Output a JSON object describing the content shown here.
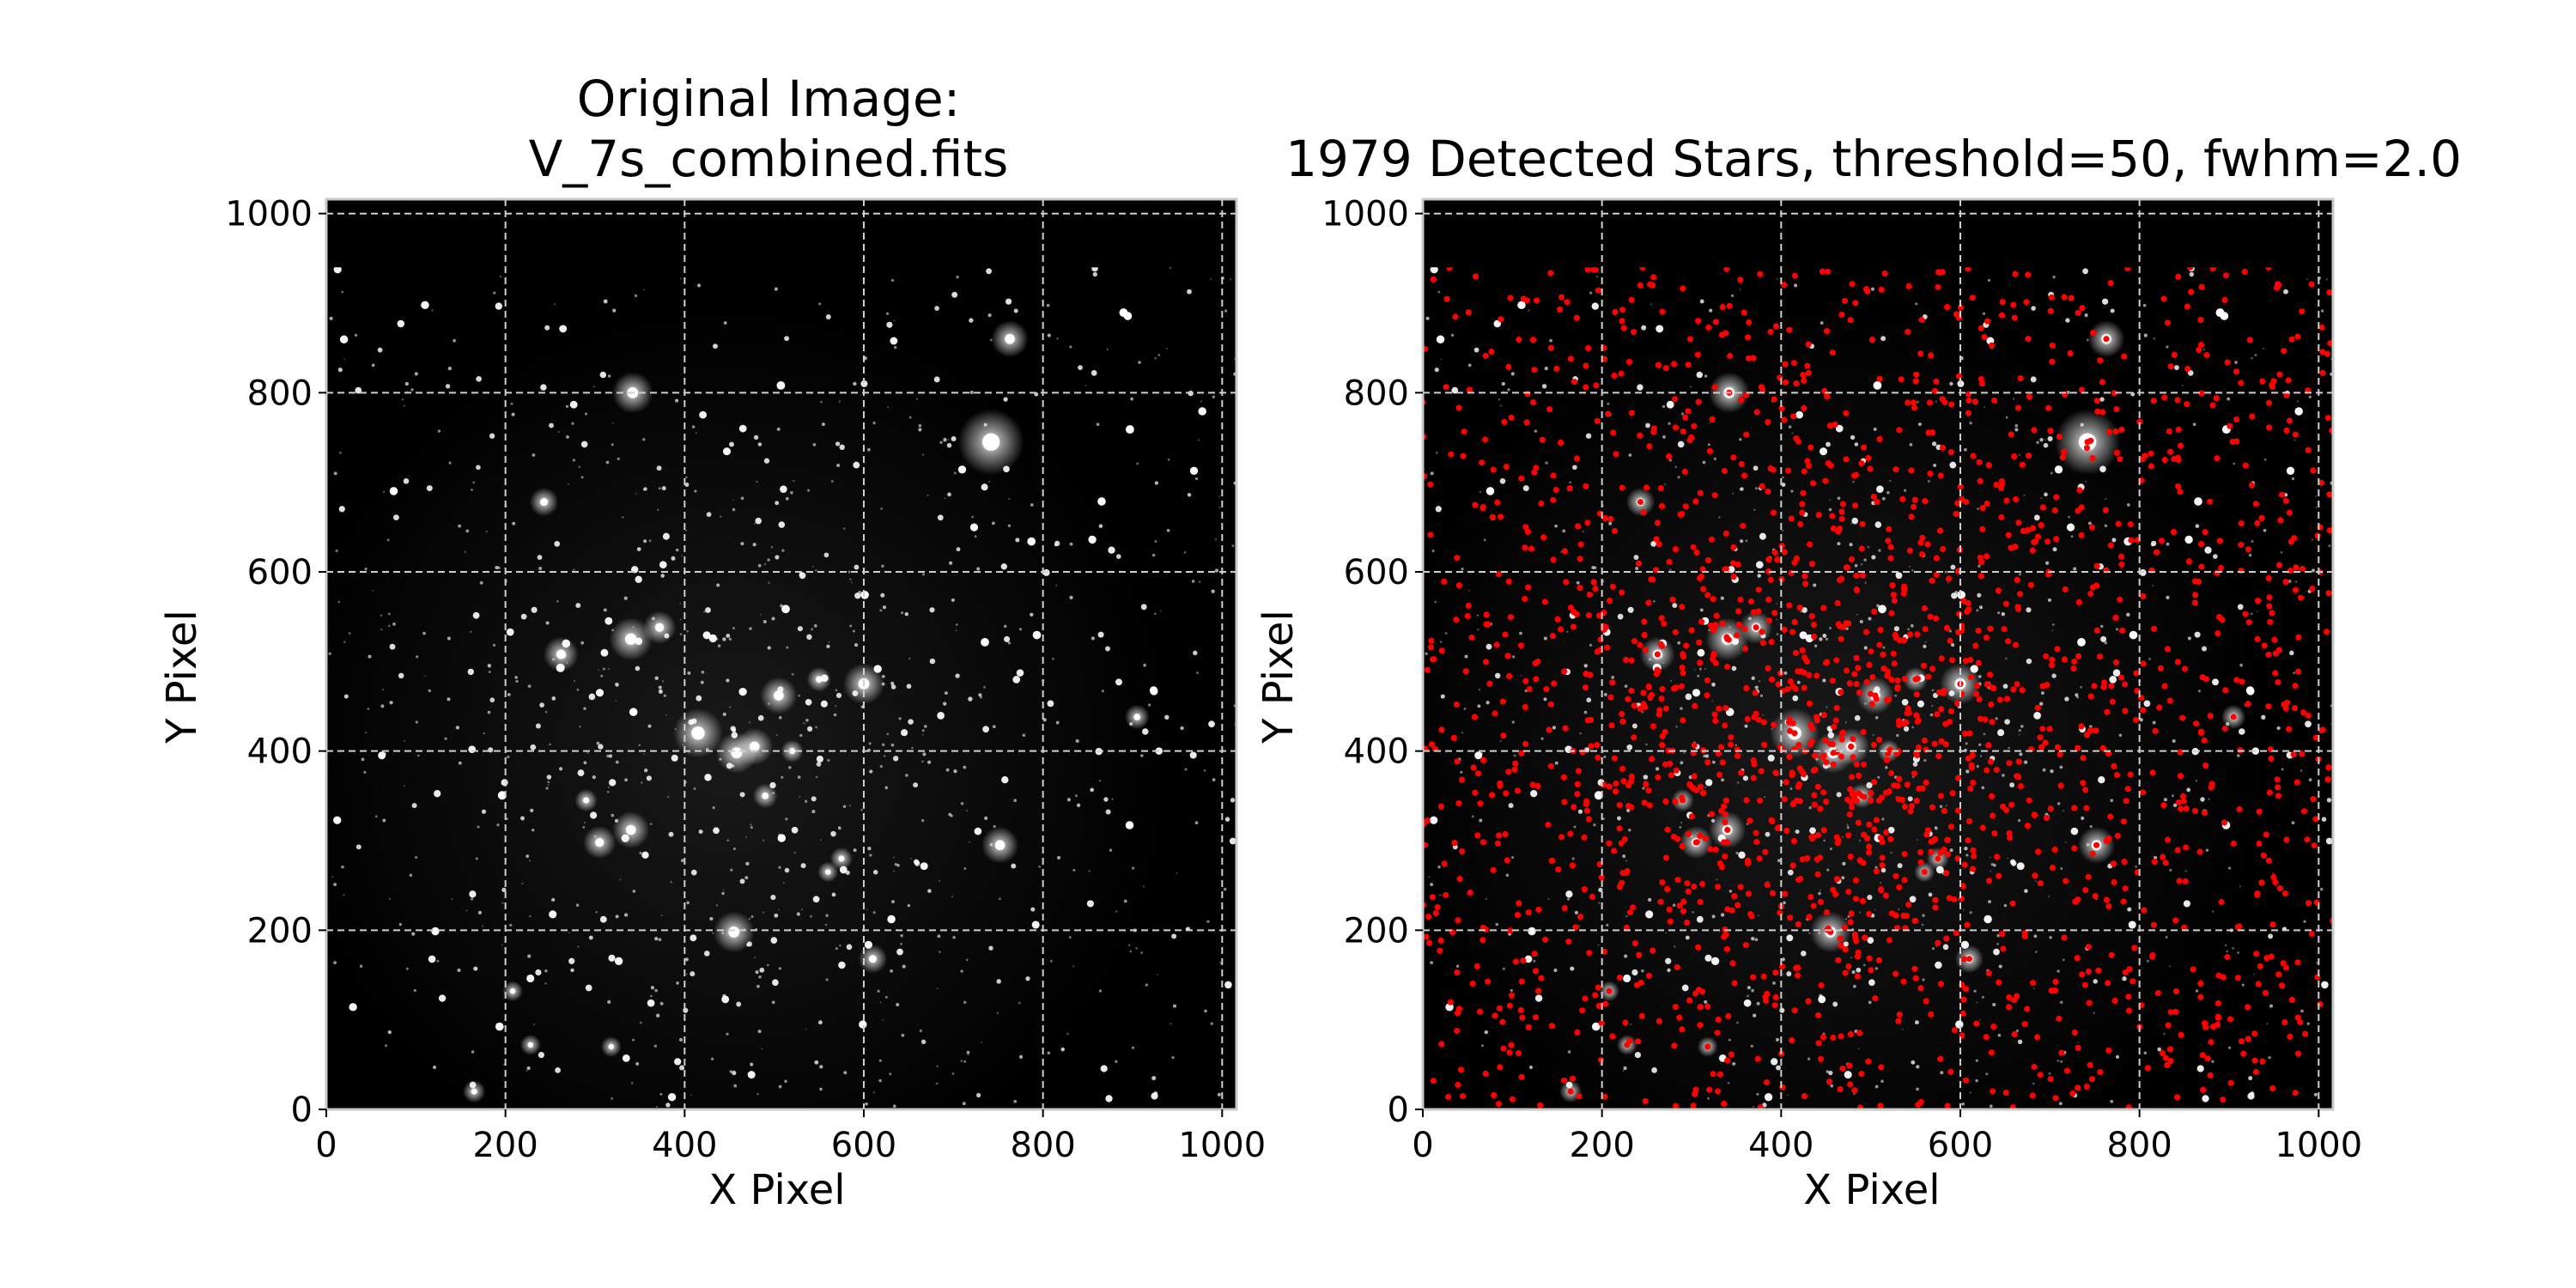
{
  "chart_data": [
    {
      "type": "scatter",
      "title_line1": "Original Image:",
      "title_line2": "V_7s_combined.fits",
      "xlabel": "X Pixel",
      "ylabel": "Y Pixel",
      "xlim": [
        0,
        1016
      ],
      "ylim": [
        0,
        1016
      ],
      "xticks": [
        "0",
        "200",
        "400",
        "600",
        "800",
        "1000"
      ],
      "yticks": [
        "0",
        "200",
        "400",
        "600",
        "800",
        "1000"
      ],
      "xtick_values": [
        0,
        200,
        400,
        600,
        800,
        1000
      ],
      "ytick_values": [
        0,
        200,
        400,
        600,
        800,
        1000
      ],
      "grid": true,
      "background": "#000000",
      "blank_band_y": [
        940,
        1016
      ],
      "bright_stars": [
        {
          "x": 742,
          "y": 745,
          "m": 3.2
        },
        {
          "x": 342,
          "y": 800,
          "m": 2.0
        },
        {
          "x": 763,
          "y": 860,
          "m": 1.8
        },
        {
          "x": 340,
          "y": 525,
          "m": 2.1
        },
        {
          "x": 372,
          "y": 538,
          "m": 1.6
        },
        {
          "x": 262,
          "y": 508,
          "m": 1.7
        },
        {
          "x": 415,
          "y": 420,
          "m": 2.4
        },
        {
          "x": 458,
          "y": 398,
          "m": 2.0
        },
        {
          "x": 478,
          "y": 405,
          "m": 1.8
        },
        {
          "x": 505,
          "y": 462,
          "m": 1.8
        },
        {
          "x": 600,
          "y": 475,
          "m": 2.0
        },
        {
          "x": 340,
          "y": 312,
          "m": 1.8
        },
        {
          "x": 305,
          "y": 298,
          "m": 1.6
        },
        {
          "x": 455,
          "y": 198,
          "m": 2.0
        },
        {
          "x": 752,
          "y": 295,
          "m": 1.8
        },
        {
          "x": 610,
          "y": 168,
          "m": 1.4
        },
        {
          "x": 243,
          "y": 678,
          "m": 1.4
        },
        {
          "x": 905,
          "y": 438,
          "m": 1.2
        },
        {
          "x": 165,
          "y": 20,
          "m": 1.1
        },
        {
          "x": 228,
          "y": 72,
          "m": 1.0
        },
        {
          "x": 318,
          "y": 70,
          "m": 1.0
        },
        {
          "x": 208,
          "y": 132,
          "m": 1.0
        },
        {
          "x": 550,
          "y": 480,
          "m": 1.2
        },
        {
          "x": 290,
          "y": 345,
          "m": 1.1
        },
        {
          "x": 575,
          "y": 280,
          "m": 1.1
        },
        {
          "x": 560,
          "y": 265,
          "m": 1.0
        },
        {
          "x": 490,
          "y": 350,
          "m": 1.2
        },
        {
          "x": 520,
          "y": 400,
          "m": 1.1
        }
      ]
    },
    {
      "type": "scatter",
      "title": "1979 Detected Stars, threshold=50, fwhm=2.0",
      "xlabel": "X Pixel",
      "ylabel": "Y Pixel",
      "xlim": [
        0,
        1016
      ],
      "ylim": [
        0,
        1016
      ],
      "xticks": [
        "0",
        "200",
        "400",
        "600",
        "800",
        "1000"
      ],
      "yticks": [
        "0",
        "200",
        "400",
        "600",
        "800",
        "1000"
      ],
      "xtick_values": [
        0,
        200,
        400,
        600,
        800,
        1000
      ],
      "ytick_values": [
        0,
        200,
        400,
        600,
        800,
        1000
      ],
      "grid": true,
      "background": "#000000",
      "blank_band_y": [
        940,
        1016
      ],
      "detections": {
        "count": 1979,
        "marker_color": "#ff0000",
        "x_range": [
          0,
          1016
        ],
        "y_range": [
          0,
          940
        ]
      }
    }
  ],
  "colors": {
    "grid": "#d0d0d0",
    "marker": "#ff0000",
    "background": "#000000"
  }
}
